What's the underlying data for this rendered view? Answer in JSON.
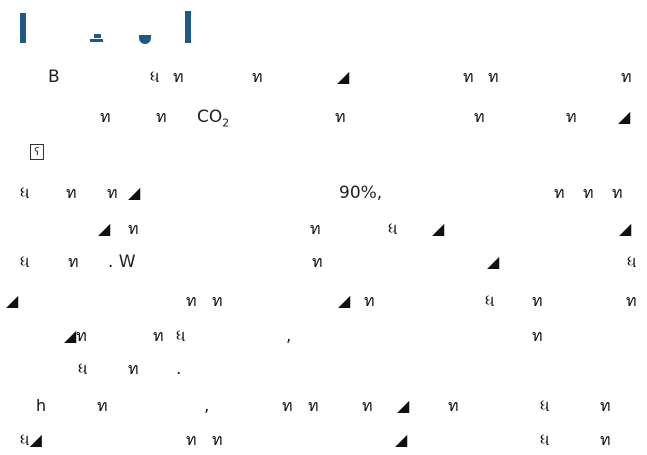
{
  "document": {
    "line_1": {
      "b": "B"
    },
    "line_2": {
      "co": "CO",
      "sub": "2"
    },
    "line_4": {
      "pct": "90%,"
    },
    "line_6": {
      "w": ". W"
    },
    "line_8": {
      "comma": ","
    },
    "line_9": {
      "dot": "."
    },
    "line_10": {
      "comma": ","
    }
  }
}
